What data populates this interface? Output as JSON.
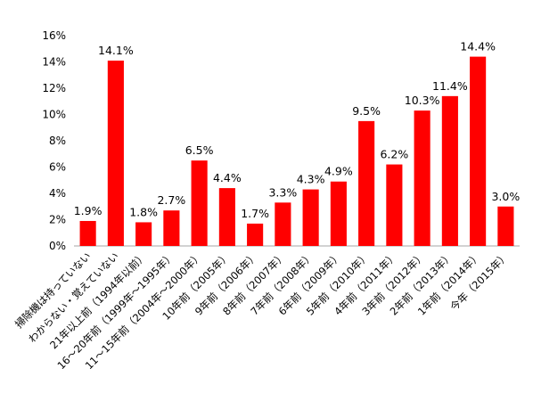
{
  "chart_data": {
    "type": "bar",
    "title": "",
    "xlabel": "",
    "ylabel": "",
    "ylim": [
      0,
      16
    ],
    "yticks": [
      "0%",
      "2%",
      "4%",
      "6%",
      "8%",
      "10%",
      "12%",
      "14%",
      "16%"
    ],
    "bar_color": "#ff0000",
    "grid": false,
    "legend": "none",
    "categories": [
      "掃除機は持っていない",
      "わからない・覚えていない",
      "21年以上前（1994年以前）",
      "16〜20年前（1999年〜1995年）",
      "11〜15年前（2004年〜2000年）",
      "10年前（2005年）",
      "9年前（2006年）",
      "8年前（2007年）",
      "7年前（2008年）",
      "6年前（2009年）",
      "5年前（2010年）",
      "4年前（2011年）",
      "3年前（2012年）",
      "2年前（2013年）",
      "1年前（2014年）",
      "今年（2015年）"
    ],
    "values": [
      1.9,
      14.1,
      1.8,
      2.7,
      6.5,
      4.4,
      1.7,
      3.3,
      4.3,
      4.9,
      9.5,
      6.2,
      10.3,
      11.4,
      14.4,
      3.0
    ],
    "data_labels": [
      "1.9%",
      "14.1%",
      "1.8%",
      "2.7%",
      "6.5%",
      "4.4%",
      "1.7%",
      "3.3%",
      "4.3%",
      "4.9%",
      "9.5%",
      "6.2%",
      "10.3%",
      "11.4%",
      "14.4%",
      "3.0%"
    ]
  }
}
